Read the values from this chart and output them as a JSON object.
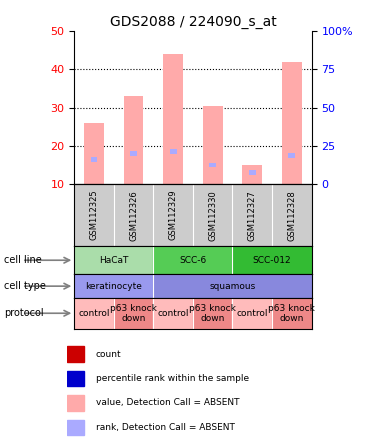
{
  "title": "GDS2088 / 224090_s_at",
  "samples": [
    "GSM112325",
    "GSM112326",
    "GSM112329",
    "GSM112330",
    "GSM112327",
    "GSM112328"
  ],
  "bar_heights": [
    26,
    33,
    44,
    30.5,
    15,
    42
  ],
  "rank_values": [
    16.5,
    18,
    18.5,
    15,
    13,
    17.5
  ],
  "ylim_left": [
    10,
    50
  ],
  "ylim_right": [
    0,
    100
  ],
  "yticks_left": [
    10,
    20,
    30,
    40,
    50
  ],
  "yticks_right": [
    0,
    25,
    50,
    75,
    100
  ],
  "ytick_labels_right": [
    "0",
    "25",
    "50",
    "75",
    "100%"
  ],
  "bar_color": "#ffaaaa",
  "rank_color": "#aaaaff",
  "cell_line_data": [
    {
      "label": "HaCaT",
      "start": 0,
      "end": 2,
      "color": "#aaddaa"
    },
    {
      "label": "SCC-6",
      "start": 2,
      "end": 4,
      "color": "#55cc55"
    },
    {
      "label": "SCC-012",
      "start": 4,
      "end": 6,
      "color": "#33bb33"
    }
  ],
  "cell_type_data": [
    {
      "label": "keratinocyte",
      "start": 0,
      "end": 2,
      "color": "#9999ee"
    },
    {
      "label": "squamous",
      "start": 2,
      "end": 6,
      "color": "#8888dd"
    }
  ],
  "protocol_data": [
    {
      "label": "control",
      "start": 0,
      "end": 1,
      "color": "#ffbbbb"
    },
    {
      "label": "p63 knock\ndown",
      "start": 1,
      "end": 2,
      "color": "#ee8888"
    },
    {
      "label": "control",
      "start": 2,
      "end": 3,
      "color": "#ffbbbb"
    },
    {
      "label": "p63 knock\ndown",
      "start": 3,
      "end": 4,
      "color": "#ee8888"
    },
    {
      "label": "control",
      "start": 4,
      "end": 5,
      "color": "#ffbbbb"
    },
    {
      "label": "p63 knock\ndown",
      "start": 5,
      "end": 6,
      "color": "#ee8888"
    }
  ],
  "row_labels": [
    "cell line",
    "cell type",
    "protocol"
  ],
  "legend_items": [
    {
      "color": "#cc0000",
      "label": "count"
    },
    {
      "color": "#0000cc",
      "label": "percentile rank within the sample"
    },
    {
      "color": "#ffaaaa",
      "label": "value, Detection Call = ABSENT"
    },
    {
      "color": "#aaaaff",
      "label": "rank, Detection Call = ABSENT"
    }
  ]
}
